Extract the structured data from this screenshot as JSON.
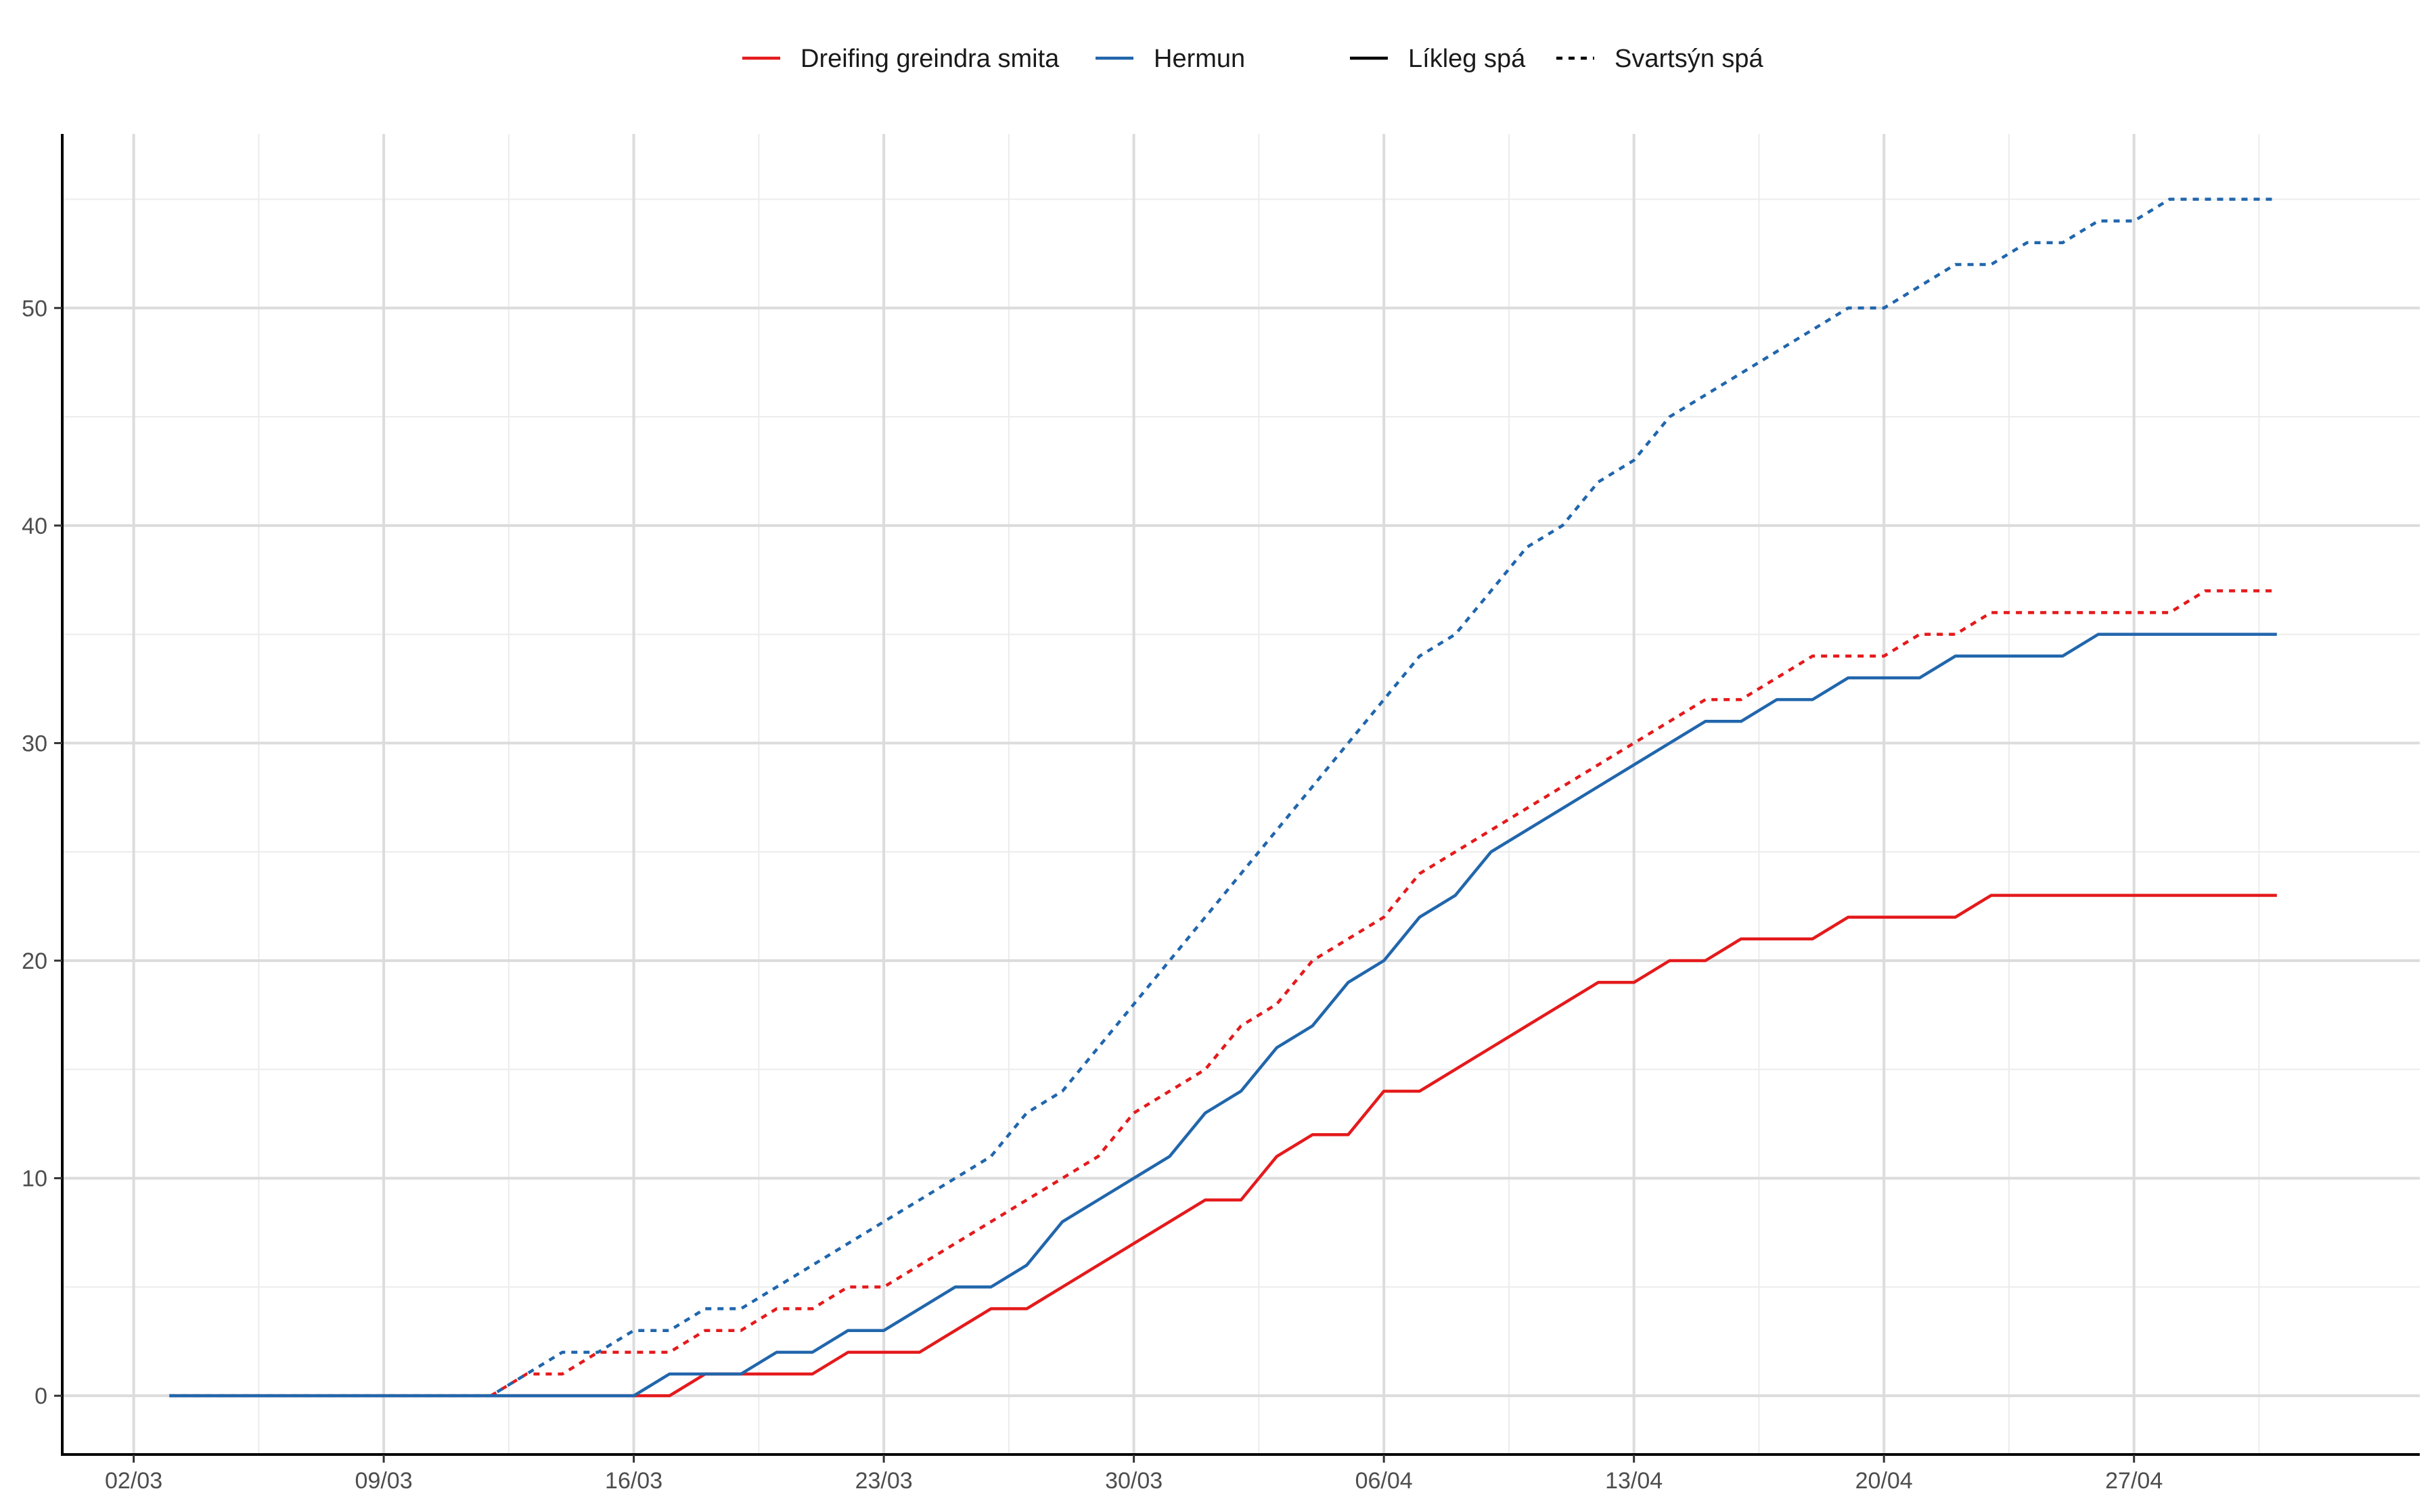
{
  "chart_data": {
    "type": "line",
    "title": "",
    "xlabel": "",
    "ylabel": "",
    "x_axis": {
      "type": "date",
      "range": [
        "2020-02-29",
        "2020-05-05"
      ],
      "ticks": [
        {
          "date": "2020-03-02",
          "label": "02/03"
        },
        {
          "date": "2020-03-09",
          "label": "09/03"
        },
        {
          "date": "2020-03-16",
          "label": "16/03"
        },
        {
          "date": "2020-03-23",
          "label": "23/03"
        },
        {
          "date": "2020-03-30",
          "label": "30/03"
        },
        {
          "date": "2020-04-06",
          "label": "06/04"
        },
        {
          "date": "2020-04-13",
          "label": "13/04"
        },
        {
          "date": "2020-04-20",
          "label": "20/04"
        },
        {
          "date": "2020-04-27",
          "label": "27/04"
        }
      ]
    },
    "y_axis": {
      "range": [
        -2.7,
        58
      ],
      "ticks": [
        0,
        10,
        20,
        30,
        40,
        50
      ]
    },
    "grid": true,
    "legend": {
      "placement": "top",
      "color_entries": [
        {
          "label": "Dreifing greindra smita",
          "color": "#e41a1c"
        },
        {
          "label": "Hermun",
          "color": "#2166ac"
        }
      ],
      "linetype_entries": [
        {
          "label": "Líkleg spá",
          "dash": "solid"
        },
        {
          "label": "Svartsýn spá",
          "dash": "dotted"
        }
      ]
    },
    "series": [
      {
        "color": "#e41a1c",
        "dash": "solid",
        "points": [
          [
            "2020-03-03",
            0
          ],
          [
            "2020-03-16",
            0
          ],
          [
            "2020-03-17",
            0
          ],
          [
            "2020-03-18",
            1
          ],
          [
            "2020-03-19",
            1
          ],
          [
            "2020-03-20",
            1
          ],
          [
            "2020-03-21",
            1
          ],
          [
            "2020-03-22",
            2
          ],
          [
            "2020-03-23",
            2
          ],
          [
            "2020-03-24",
            2
          ],
          [
            "2020-03-25",
            3
          ],
          [
            "2020-03-26",
            4
          ],
          [
            "2020-03-27",
            4
          ],
          [
            "2020-03-28",
            5
          ],
          [
            "2020-03-29",
            6
          ],
          [
            "2020-03-30",
            7
          ],
          [
            "2020-03-31",
            8
          ],
          [
            "2020-04-01",
            9
          ],
          [
            "2020-04-02",
            9
          ],
          [
            "2020-04-03",
            11
          ],
          [
            "2020-04-04",
            12
          ],
          [
            "2020-04-05",
            12
          ],
          [
            "2020-04-06",
            14
          ],
          [
            "2020-04-07",
            14
          ],
          [
            "2020-04-08",
            15
          ],
          [
            "2020-04-09",
            16
          ],
          [
            "2020-04-10",
            17
          ],
          [
            "2020-04-11",
            18
          ],
          [
            "2020-04-12",
            19
          ],
          [
            "2020-04-13",
            19
          ],
          [
            "2020-04-14",
            20
          ],
          [
            "2020-04-15",
            20
          ],
          [
            "2020-04-16",
            21
          ],
          [
            "2020-04-17",
            21
          ],
          [
            "2020-04-18",
            21
          ],
          [
            "2020-04-19",
            22
          ],
          [
            "2020-04-20",
            22
          ],
          [
            "2020-04-21",
            22
          ],
          [
            "2020-04-22",
            22
          ],
          [
            "2020-04-23",
            23
          ],
          [
            "2020-05-01",
            23
          ]
        ]
      },
      {
        "color": "#e41a1c",
        "dash": "dotted",
        "points": [
          [
            "2020-03-12",
            0
          ],
          [
            "2020-03-13",
            1
          ],
          [
            "2020-03-14",
            1
          ],
          [
            "2020-03-15",
            2
          ],
          [
            "2020-03-16",
            2
          ],
          [
            "2020-03-17",
            2
          ],
          [
            "2020-03-18",
            3
          ],
          [
            "2020-03-19",
            3
          ],
          [
            "2020-03-20",
            4
          ],
          [
            "2020-03-21",
            4
          ],
          [
            "2020-03-22",
            5
          ],
          [
            "2020-03-23",
            5
          ],
          [
            "2020-03-24",
            6
          ],
          [
            "2020-03-25",
            7
          ],
          [
            "2020-03-26",
            8
          ],
          [
            "2020-03-27",
            9
          ],
          [
            "2020-03-28",
            10
          ],
          [
            "2020-03-29",
            11
          ],
          [
            "2020-03-30",
            13
          ],
          [
            "2020-03-31",
            14
          ],
          [
            "2020-04-01",
            15
          ],
          [
            "2020-04-02",
            17
          ],
          [
            "2020-04-03",
            18
          ],
          [
            "2020-04-04",
            20
          ],
          [
            "2020-04-05",
            21
          ],
          [
            "2020-04-06",
            22
          ],
          [
            "2020-04-07",
            24
          ],
          [
            "2020-04-08",
            25
          ],
          [
            "2020-04-09",
            26
          ],
          [
            "2020-04-10",
            27
          ],
          [
            "2020-04-11",
            28
          ],
          [
            "2020-04-12",
            29
          ],
          [
            "2020-04-13",
            30
          ],
          [
            "2020-04-14",
            31
          ],
          [
            "2020-04-15",
            32
          ],
          [
            "2020-04-16",
            32
          ],
          [
            "2020-04-17",
            33
          ],
          [
            "2020-04-18",
            34
          ],
          [
            "2020-04-19",
            34
          ],
          [
            "2020-04-20",
            34
          ],
          [
            "2020-04-21",
            35
          ],
          [
            "2020-04-22",
            35
          ],
          [
            "2020-04-23",
            36
          ],
          [
            "2020-04-24",
            36
          ],
          [
            "2020-04-25",
            36
          ],
          [
            "2020-04-26",
            36
          ],
          [
            "2020-04-27",
            36
          ],
          [
            "2020-04-28",
            36
          ],
          [
            "2020-04-29",
            37
          ],
          [
            "2020-05-01",
            37
          ]
        ]
      },
      {
        "color": "#2166ac",
        "dash": "solid",
        "points": [
          [
            "2020-03-03",
            0
          ],
          [
            "2020-03-16",
            0
          ],
          [
            "2020-03-17",
            1
          ],
          [
            "2020-03-18",
            1
          ],
          [
            "2020-03-19",
            1
          ],
          [
            "2020-03-20",
            2
          ],
          [
            "2020-03-21",
            2
          ],
          [
            "2020-03-22",
            3
          ],
          [
            "2020-03-23",
            3
          ],
          [
            "2020-03-24",
            4
          ],
          [
            "2020-03-25",
            5
          ],
          [
            "2020-03-26",
            5
          ],
          [
            "2020-03-27",
            6
          ],
          [
            "2020-03-28",
            8
          ],
          [
            "2020-03-29",
            9
          ],
          [
            "2020-03-30",
            10
          ],
          [
            "2020-03-31",
            11
          ],
          [
            "2020-04-01",
            13
          ],
          [
            "2020-04-02",
            14
          ],
          [
            "2020-04-03",
            16
          ],
          [
            "2020-04-04",
            17
          ],
          [
            "2020-04-05",
            19
          ],
          [
            "2020-04-06",
            20
          ],
          [
            "2020-04-07",
            22
          ],
          [
            "2020-04-08",
            23
          ],
          [
            "2020-04-09",
            25
          ],
          [
            "2020-04-10",
            26
          ],
          [
            "2020-04-11",
            27
          ],
          [
            "2020-04-12",
            28
          ],
          [
            "2020-04-13",
            29
          ],
          [
            "2020-04-14",
            30
          ],
          [
            "2020-04-15",
            31
          ],
          [
            "2020-04-16",
            31
          ],
          [
            "2020-04-17",
            32
          ],
          [
            "2020-04-18",
            32
          ],
          [
            "2020-04-19",
            33
          ],
          [
            "2020-04-20",
            33
          ],
          [
            "2020-04-21",
            33
          ],
          [
            "2020-04-22",
            34
          ],
          [
            "2020-04-23",
            34
          ],
          [
            "2020-04-24",
            34
          ],
          [
            "2020-04-25",
            34
          ],
          [
            "2020-04-26",
            35
          ],
          [
            "2020-05-01",
            35
          ]
        ]
      },
      {
        "color": "#2166ac",
        "dash": "dotted",
        "points": [
          [
            "2020-03-03",
            0
          ],
          [
            "2020-03-12",
            0
          ],
          [
            "2020-03-13",
            1
          ],
          [
            "2020-03-14",
            2
          ],
          [
            "2020-03-15",
            2
          ],
          [
            "2020-03-16",
            3
          ],
          [
            "2020-03-17",
            3
          ],
          [
            "2020-03-18",
            4
          ],
          [
            "2020-03-19",
            4
          ],
          [
            "2020-03-20",
            5
          ],
          [
            "2020-03-21",
            6
          ],
          [
            "2020-03-22",
            7
          ],
          [
            "2020-03-23",
            8
          ],
          [
            "2020-03-24",
            9
          ],
          [
            "2020-03-25",
            10
          ],
          [
            "2020-03-26",
            11
          ],
          [
            "2020-03-27",
            13
          ],
          [
            "2020-03-28",
            14
          ],
          [
            "2020-03-29",
            16
          ],
          [
            "2020-03-30",
            18
          ],
          [
            "2020-03-31",
            20
          ],
          [
            "2020-04-01",
            22
          ],
          [
            "2020-04-02",
            24
          ],
          [
            "2020-04-03",
            26
          ],
          [
            "2020-04-04",
            28
          ],
          [
            "2020-04-05",
            30
          ],
          [
            "2020-04-06",
            32
          ],
          [
            "2020-04-07",
            34
          ],
          [
            "2020-04-08",
            35
          ],
          [
            "2020-04-09",
            37
          ],
          [
            "2020-04-10",
            39
          ],
          [
            "2020-04-11",
            40
          ],
          [
            "2020-04-12",
            42
          ],
          [
            "2020-04-13",
            43
          ],
          [
            "2020-04-14",
            45
          ],
          [
            "2020-04-15",
            46
          ],
          [
            "2020-04-16",
            47
          ],
          [
            "2020-04-17",
            48
          ],
          [
            "2020-04-18",
            49
          ],
          [
            "2020-04-19",
            50
          ],
          [
            "2020-04-20",
            50
          ],
          [
            "2020-04-21",
            51
          ],
          [
            "2020-04-22",
            52
          ],
          [
            "2020-04-23",
            52
          ],
          [
            "2020-04-24",
            53
          ],
          [
            "2020-04-25",
            53
          ],
          [
            "2020-04-26",
            54
          ],
          [
            "2020-04-27",
            54
          ],
          [
            "2020-04-28",
            55
          ],
          [
            "2020-05-01",
            55
          ]
        ]
      }
    ]
  }
}
